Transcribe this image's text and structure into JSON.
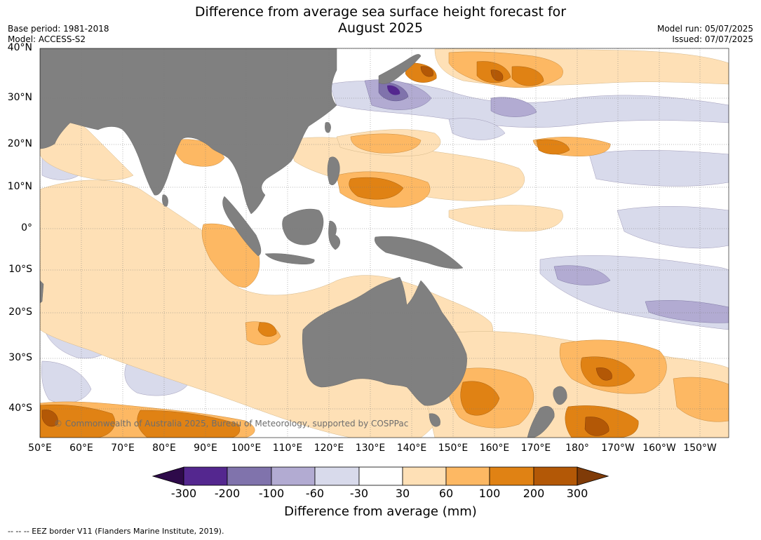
{
  "header": {
    "title_line1": "Difference from average sea surface height forecast for",
    "title_line2": "August 2025",
    "base_period": "Base period: 1981-2018",
    "model": "Model: ACCESS-S2",
    "model_run": "Model run: 05/07/2025",
    "issued": "Issued: 07/07/2025"
  },
  "map": {
    "land_color": "#808080",
    "credit": "© Commonwealth of Australia 2025, Bureau of Meteorology, supported by COSPPac",
    "lat_labels": [
      "40°N",
      "30°N",
      "20°N",
      "10°N",
      "0°",
      "10°S",
      "20°S",
      "30°S",
      "40°S"
    ],
    "lon_labels": [
      "50°E",
      "60°E",
      "70°E",
      "80°E",
      "90°E",
      "100°E",
      "110°E",
      "120°E",
      "130°E",
      "140°E",
      "150°E",
      "160°E",
      "170°E",
      "180°",
      "170°W",
      "160°W",
      "150°W"
    ]
  },
  "colorbar": {
    "title": "Difference from average (mm)",
    "ticks": [
      "-300",
      "-200",
      "-100",
      "-60",
      "-30",
      "30",
      "60",
      "100",
      "200",
      "300"
    ],
    "colors": [
      "#2e0a4a",
      "#54278f",
      "#8073ac",
      "#b2abd2",
      "#d8daeb",
      "#ffffff",
      "#fee0b6",
      "#fdb863",
      "#e08214",
      "#b35806",
      "#7f3b08"
    ]
  },
  "footer": "--  --  -- EEZ border V11 (Flanders Marine Institute, 2019)."
}
